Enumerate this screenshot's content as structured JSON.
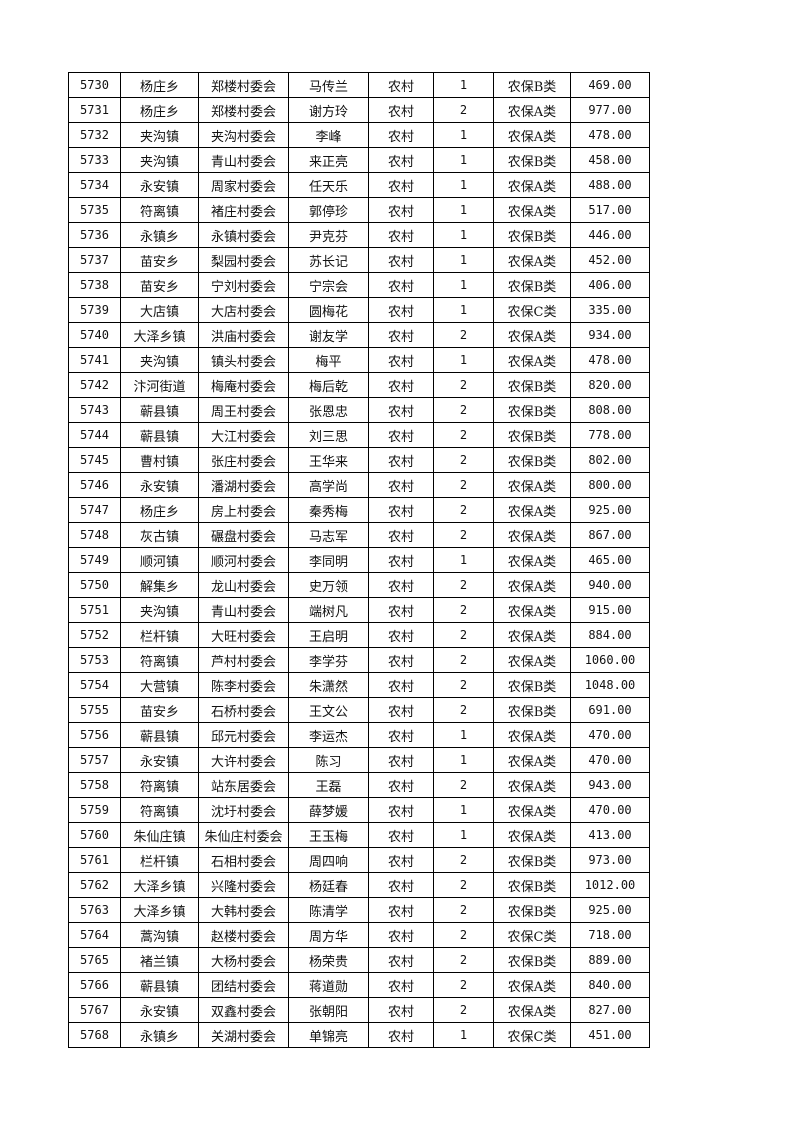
{
  "rows": [
    [
      "5730",
      "杨庄乡",
      "郑楼村委会",
      "马传兰",
      "农村",
      "1",
      "农保B类",
      "469.00"
    ],
    [
      "5731",
      "杨庄乡",
      "郑楼村委会",
      "谢方玲",
      "农村",
      "2",
      "农保A类",
      "977.00"
    ],
    [
      "5732",
      "夹沟镇",
      "夹沟村委会",
      "李峰",
      "农村",
      "1",
      "农保A类",
      "478.00"
    ],
    [
      "5733",
      "夹沟镇",
      "青山村委会",
      "来正亮",
      "农村",
      "1",
      "农保B类",
      "458.00"
    ],
    [
      "5734",
      "永安镇",
      "周家村委会",
      "任天乐",
      "农村",
      "1",
      "农保A类",
      "488.00"
    ],
    [
      "5735",
      "符离镇",
      "褚庄村委会",
      "郭停珍",
      "农村",
      "1",
      "农保A类",
      "517.00"
    ],
    [
      "5736",
      "永镇乡",
      "永镇村委会",
      "尹克芬",
      "农村",
      "1",
      "农保B类",
      "446.00"
    ],
    [
      "5737",
      "苗安乡",
      "梨园村委会",
      "苏长记",
      "农村",
      "1",
      "农保A类",
      "452.00"
    ],
    [
      "5738",
      "苗安乡",
      "宁刘村委会",
      "宁宗会",
      "农村",
      "1",
      "农保B类",
      "406.00"
    ],
    [
      "5739",
      "大店镇",
      "大店村委会",
      "圆梅花",
      "农村",
      "1",
      "农保C类",
      "335.00"
    ],
    [
      "5740",
      "大泽乡镇",
      "洪庙村委会",
      "谢友学",
      "农村",
      "2",
      "农保A类",
      "934.00"
    ],
    [
      "5741",
      "夹沟镇",
      "镇头村委会",
      "梅平",
      "农村",
      "1",
      "农保A类",
      "478.00"
    ],
    [
      "5742",
      "汴河街道",
      "梅庵村委会",
      "梅后乾",
      "农村",
      "2",
      "农保B类",
      "820.00"
    ],
    [
      "5743",
      "蕲县镇",
      "周王村委会",
      "张恩忠",
      "农村",
      "2",
      "农保B类",
      "808.00"
    ],
    [
      "5744",
      "蕲县镇",
      "大江村委会",
      "刘三思",
      "农村",
      "2",
      "农保B类",
      "778.00"
    ],
    [
      "5745",
      "曹村镇",
      "张庄村委会",
      "王华来",
      "农村",
      "2",
      "农保B类",
      "802.00"
    ],
    [
      "5746",
      "永安镇",
      "潘湖村委会",
      "高学尚",
      "农村",
      "2",
      "农保A类",
      "800.00"
    ],
    [
      "5747",
      "杨庄乡",
      "房上村委会",
      "秦秀梅",
      "农村",
      "2",
      "农保A类",
      "925.00"
    ],
    [
      "5748",
      "灰古镇",
      "碾盘村委会",
      "马志军",
      "农村",
      "2",
      "农保A类",
      "867.00"
    ],
    [
      "5749",
      "顺河镇",
      "顺河村委会",
      "李同明",
      "农村",
      "1",
      "农保A类",
      "465.00"
    ],
    [
      "5750",
      "解集乡",
      "龙山村委会",
      "史万领",
      "农村",
      "2",
      "农保A类",
      "940.00"
    ],
    [
      "5751",
      "夹沟镇",
      "青山村委会",
      "端树凡",
      "农村",
      "2",
      "农保A类",
      "915.00"
    ],
    [
      "5752",
      "栏杆镇",
      "大旺村委会",
      "王启明",
      "农村",
      "2",
      "农保A类",
      "884.00"
    ],
    [
      "5753",
      "符离镇",
      "芦村村委会",
      "李学芬",
      "农村",
      "2",
      "农保A类",
      "1060.00"
    ],
    [
      "5754",
      "大营镇",
      "陈李村委会",
      "朱潇然",
      "农村",
      "2",
      "农保B类",
      "1048.00"
    ],
    [
      "5755",
      "苗安乡",
      "石桥村委会",
      "王文公",
      "农村",
      "2",
      "农保B类",
      "691.00"
    ],
    [
      "5756",
      "蕲县镇",
      "邱元村委会",
      "李运杰",
      "农村",
      "1",
      "农保A类",
      "470.00"
    ],
    [
      "5757",
      "永安镇",
      "大许村委会",
      "陈习",
      "农村",
      "1",
      "农保A类",
      "470.00"
    ],
    [
      "5758",
      "符离镇",
      "站东居委会",
      "王磊",
      "农村",
      "2",
      "农保A类",
      "943.00"
    ],
    [
      "5759",
      "符离镇",
      "沈圩村委会",
      "薛梦媛",
      "农村",
      "1",
      "农保A类",
      "470.00"
    ],
    [
      "5760",
      "朱仙庄镇",
      "朱仙庄村委会",
      "王玉梅",
      "农村",
      "1",
      "农保A类",
      "413.00"
    ],
    [
      "5761",
      "栏杆镇",
      "石相村委会",
      "周四响",
      "农村",
      "2",
      "农保B类",
      "973.00"
    ],
    [
      "5762",
      "大泽乡镇",
      "兴隆村委会",
      "杨廷春",
      "农村",
      "2",
      "农保B类",
      "1012.00"
    ],
    [
      "5763",
      "大泽乡镇",
      "大韩村委会",
      "陈清学",
      "农村",
      "2",
      "农保B类",
      "925.00"
    ],
    [
      "5764",
      "蒿沟镇",
      "赵楼村委会",
      "周方华",
      "农村",
      "2",
      "农保C类",
      "718.00"
    ],
    [
      "5765",
      "褚兰镇",
      "大杨村委会",
      "杨荣贵",
      "农村",
      "2",
      "农保B类",
      "889.00"
    ],
    [
      "5766",
      "蕲县镇",
      "团结村委会",
      "蒋道勋",
      "农村",
      "2",
      "农保A类",
      "840.00"
    ],
    [
      "5767",
      "永安镇",
      "双鑫村委会",
      "张朝阳",
      "农村",
      "2",
      "农保A类",
      "827.00"
    ],
    [
      "5768",
      "永镇乡",
      "关湖村委会",
      "单锦亮",
      "农村",
      "1",
      "农保C类",
      "451.00"
    ]
  ]
}
